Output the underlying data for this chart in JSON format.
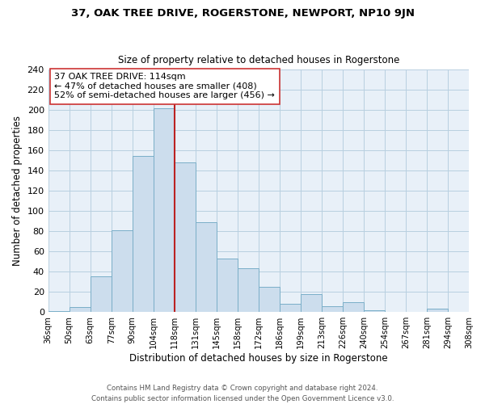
{
  "title": "37, OAK TREE DRIVE, ROGERSTONE, NEWPORT, NP10 9JN",
  "subtitle": "Size of property relative to detached houses in Rogerstone",
  "xlabel": "Distribution of detached houses by size in Rogerstone",
  "ylabel": "Number of detached properties",
  "footer_lines": [
    "Contains HM Land Registry data © Crown copyright and database right 2024.",
    "Contains public sector information licensed under the Open Government Licence v3.0."
  ],
  "bin_labels": [
    "36sqm",
    "50sqm",
    "63sqm",
    "77sqm",
    "90sqm",
    "104sqm",
    "118sqm",
    "131sqm",
    "145sqm",
    "158sqm",
    "172sqm",
    "186sqm",
    "199sqm",
    "213sqm",
    "226sqm",
    "240sqm",
    "254sqm",
    "267sqm",
    "281sqm",
    "294sqm",
    "308sqm"
  ],
  "bar_heights": [
    1,
    5,
    35,
    81,
    155,
    202,
    148,
    89,
    53,
    43,
    25,
    8,
    18,
    6,
    10,
    2,
    0,
    0,
    3,
    0
  ],
  "bar_color": "#ccdded",
  "bar_edge_color": "#7aaec8",
  "property_label": "37 OAK TREE DRIVE: 114sqm",
  "annotation_line1": "← 47% of detached houses are smaller (408)",
  "annotation_line2": "52% of semi-detached houses are larger (456) →",
  "vline_color": "#bb2222",
  "vline_x_bin_index": 6,
  "ylim": [
    0,
    240
  ],
  "yticks": [
    0,
    20,
    40,
    60,
    80,
    100,
    120,
    140,
    160,
    180,
    200,
    220,
    240
  ],
  "grid_color": "#b8cfe0",
  "background_color": "#e8f0f8"
}
